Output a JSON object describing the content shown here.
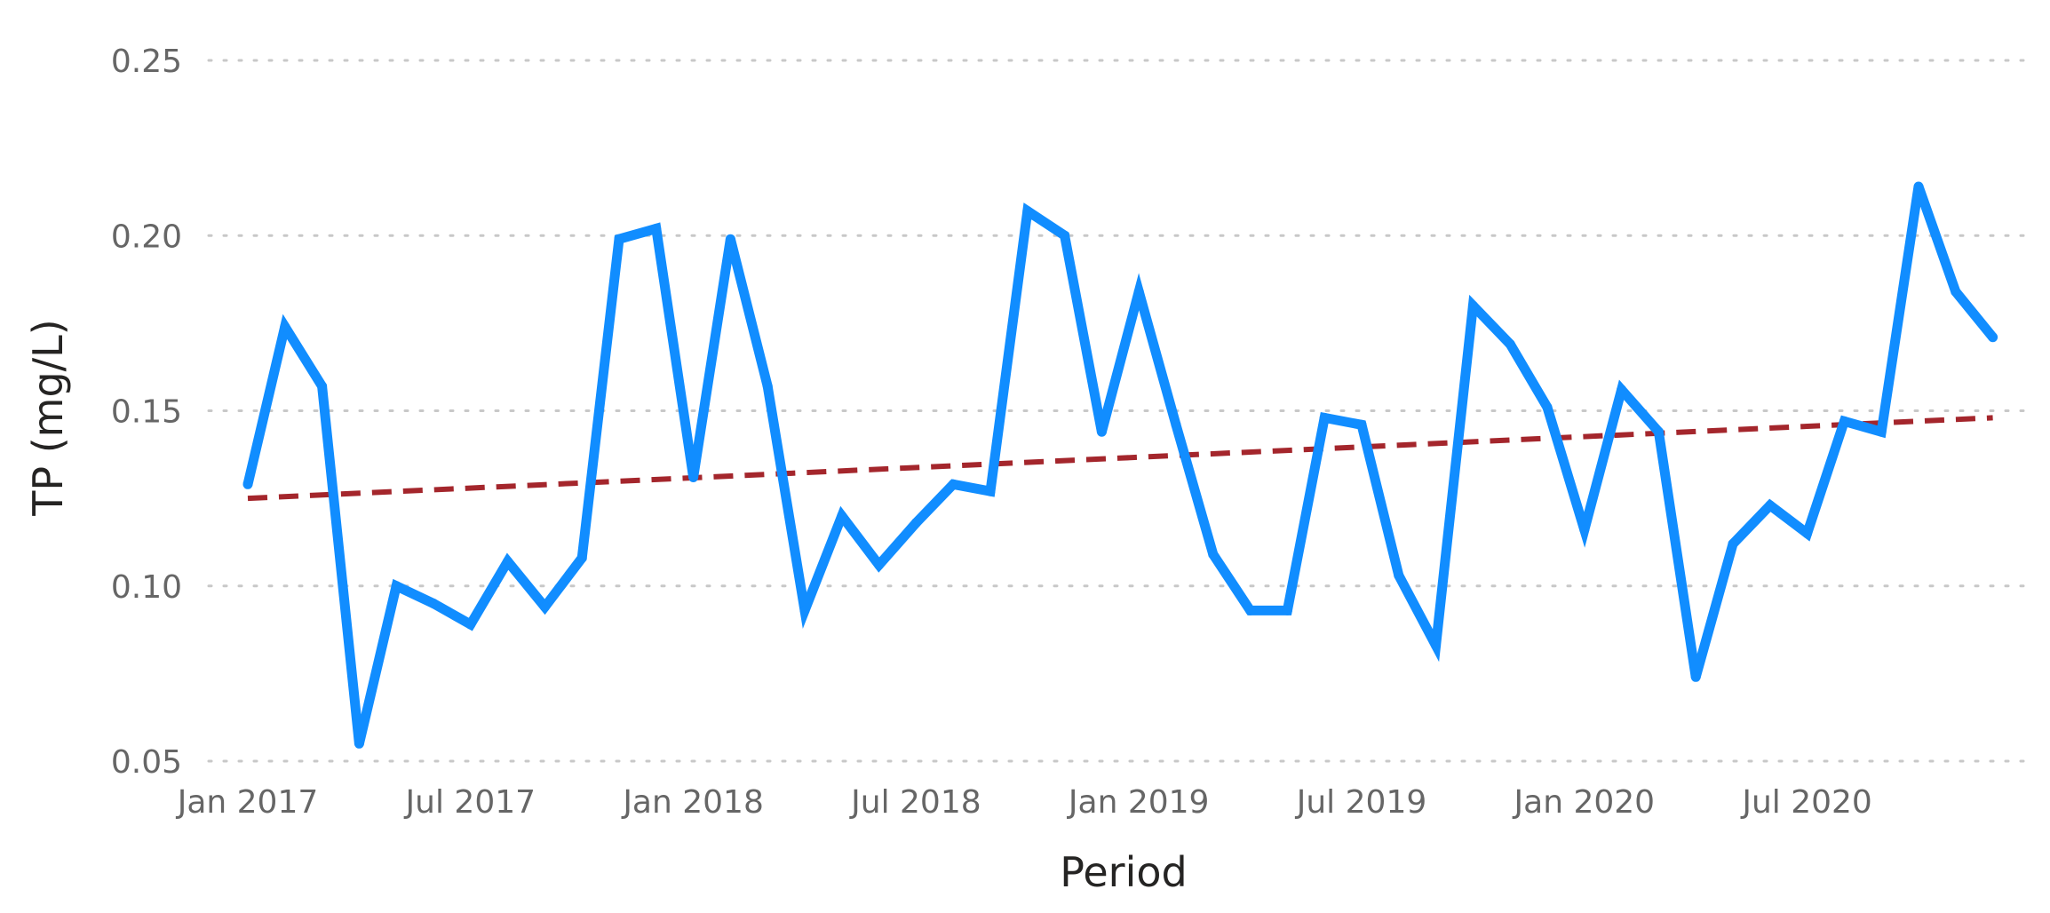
{
  "chart_data": {
    "type": "line",
    "xlabel": "Period",
    "ylabel": "TP (mg/L)",
    "ylim": [
      0.05,
      0.25
    ],
    "y_ticks": [
      "0.05",
      "0.10",
      "0.15",
      "0.20",
      "0.25"
    ],
    "x_ticks": [
      "Jan 2017",
      "Jul 2017",
      "Jan 2018",
      "Jul 2018",
      "Jan 2019",
      "Jul 2019",
      "Jan 2020",
      "Jul 2020"
    ],
    "grid": "horizontal dotted",
    "colors": {
      "series": "#118dff",
      "trend": "#a4262c",
      "grid": "#c8c8c8",
      "tick": "#666666",
      "title": "#252423"
    },
    "x": [
      "2017-01",
      "2017-02",
      "2017-03",
      "2017-04",
      "2017-05",
      "2017-06",
      "2017-07",
      "2017-08",
      "2017-09",
      "2017-10",
      "2017-11",
      "2017-12",
      "2018-01",
      "2018-02",
      "2018-03",
      "2018-04",
      "2018-05",
      "2018-06",
      "2018-07",
      "2018-08",
      "2018-09",
      "2018-10",
      "2018-11",
      "2018-12",
      "2019-01",
      "2019-02",
      "2019-03",
      "2019-04",
      "2019-05",
      "2019-06",
      "2019-07",
      "2019-08",
      "2019-09",
      "2019-10",
      "2019-11",
      "2019-12",
      "2020-01",
      "2020-02",
      "2020-03",
      "2020-04",
      "2020-05",
      "2020-06",
      "2020-07",
      "2020-08",
      "2020-09",
      "2020-10",
      "2020-11",
      "2020-12"
    ],
    "series": [
      {
        "values": [
          0.129,
          0.174,
          0.157,
          0.055,
          0.1,
          0.095,
          0.089,
          0.107,
          0.094,
          0.108,
          0.199,
          0.202,
          0.131,
          0.199,
          0.157,
          0.093,
          0.12,
          0.106,
          0.118,
          0.129,
          0.127,
          0.207,
          0.2,
          0.144,
          0.184,
          0.146,
          0.109,
          0.093,
          0.093,
          0.148,
          0.146,
          0.103,
          0.083,
          0.18,
          0.169,
          0.151,
          0.116,
          0.156,
          0.144,
          0.074,
          0.112,
          0.123,
          0.115,
          0.147,
          0.144,
          0.214,
          0.184,
          0.171
        ]
      }
    ],
    "trend": {
      "style": "dashed",
      "start": 0.125,
      "end": 0.148
    }
  }
}
